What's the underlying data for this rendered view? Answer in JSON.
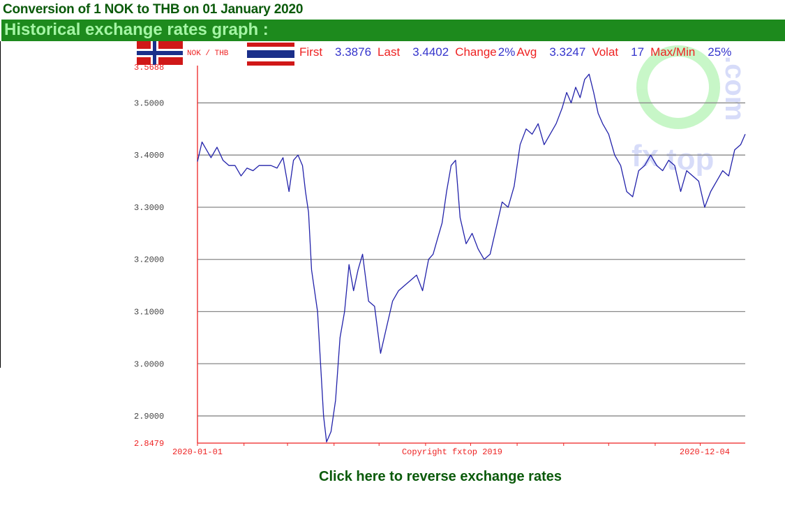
{
  "header": {
    "title": "Conversion of 1 NOK to THB on 01 January 2020",
    "section_title": "Historical exchange rates graph :"
  },
  "footer": {
    "reverse_link": "Click here to reverse exchange rates"
  },
  "colors": {
    "line": "#2222aa",
    "axis": "#ee2222",
    "grid": "#888888",
    "stats_label": "#ee2222",
    "stats_value": "#3333cc",
    "header_bar": "#1d8a1d",
    "header_text": "#a5f5a5",
    "title_text": "#0a5a0a"
  },
  "chart_data": {
    "type": "line",
    "pair_label": "NOK / THB",
    "flags": [
      "norway-flag",
      "thailand-flag"
    ],
    "stats": [
      {
        "label": "First",
        "value": "3.3876"
      },
      {
        "label": "Last",
        "value": "3.4402"
      },
      {
        "label": "Change",
        "value": "2%"
      },
      {
        "label": "Avg",
        "value": "3.3247"
      },
      {
        "label": "Volat",
        "value": "17"
      },
      {
        "label": "Max/Min",
        "value": "25%"
      }
    ],
    "ylim": [
      2.8479,
      3.5688
    ],
    "yticks": [
      "3.5688",
      "3.5000",
      "3.4000",
      "3.3000",
      "3.2000",
      "3.1000",
      "3.0000",
      "2.9000",
      "2.8479"
    ],
    "xlim": [
      "2020-01-01",
      "2020-12-31"
    ],
    "xticks_labeled": [
      "2020-01-01",
      "2020-12-04"
    ],
    "copyright": "Copyright fxtop 2019",
    "watermark": "fxtop.com",
    "grid": true,
    "series": [
      {
        "x": [
          "2020-01-01",
          "2020-01-04",
          "2020-01-07",
          "2020-01-10",
          "2020-01-14",
          "2020-01-18",
          "2020-01-22",
          "2020-01-26",
          "2020-01-30",
          "2020-02-03",
          "2020-02-07",
          "2020-02-11",
          "2020-02-15",
          "2020-02-19",
          "2020-02-23",
          "2020-02-27",
          "2020-03-02",
          "2020-03-05",
          "2020-03-08",
          "2020-03-11",
          "2020-03-13",
          "2020-03-15",
          "2020-03-17",
          "2020-03-19",
          "2020-03-21",
          "2020-03-23",
          "2020-03-25",
          "2020-03-27",
          "2020-03-30",
          "2020-04-02",
          "2020-04-05",
          "2020-04-08",
          "2020-04-11",
          "2020-04-14",
          "2020-04-17",
          "2020-04-20",
          "2020-04-24",
          "2020-04-28",
          "2020-05-02",
          "2020-05-06",
          "2020-05-10",
          "2020-05-14",
          "2020-05-18",
          "2020-05-22",
          "2020-05-26",
          "2020-05-30",
          "2020-06-03",
          "2020-06-06",
          "2020-06-09",
          "2020-06-12",
          "2020-06-15",
          "2020-06-18",
          "2020-06-21",
          "2020-06-24",
          "2020-06-28",
          "2020-07-02",
          "2020-07-06",
          "2020-07-10",
          "2020-07-14",
          "2020-07-18",
          "2020-07-22",
          "2020-07-26",
          "2020-07-30",
          "2020-08-03",
          "2020-08-07",
          "2020-08-11",
          "2020-08-15",
          "2020-08-19",
          "2020-08-23",
          "2020-08-27",
          "2020-08-31",
          "2020-09-03",
          "2020-09-06",
          "2020-09-09",
          "2020-09-12",
          "2020-09-15",
          "2020-09-18",
          "2020-09-21",
          "2020-09-24",
          "2020-09-27",
          "2020-10-01",
          "2020-10-05",
          "2020-10-09",
          "2020-10-13",
          "2020-10-17",
          "2020-10-21",
          "2020-10-25",
          "2020-10-29",
          "2020-11-02",
          "2020-11-06",
          "2020-11-10",
          "2020-11-14",
          "2020-11-18",
          "2020-11-22",
          "2020-11-26",
          "2020-11-30",
          "2020-12-04",
          "2020-12-08",
          "2020-12-12",
          "2020-12-16",
          "2020-12-20",
          "2020-12-24",
          "2020-12-28",
          "2020-12-31"
        ],
        "y": [
          3.3876,
          3.425,
          3.41,
          3.395,
          3.415,
          3.39,
          3.38,
          3.38,
          3.36,
          3.375,
          3.37,
          3.38,
          3.38,
          3.38,
          3.375,
          3.395,
          3.33,
          3.39,
          3.4,
          3.38,
          3.33,
          3.29,
          3.18,
          3.14,
          3.1,
          3.0,
          2.9,
          2.85,
          2.87,
          2.93,
          3.05,
          3.1,
          3.19,
          3.14,
          3.18,
          3.21,
          3.12,
          3.11,
          3.02,
          3.07,
          3.12,
          3.14,
          3.15,
          3.16,
          3.17,
          3.14,
          3.2,
          3.21,
          3.24,
          3.27,
          3.33,
          3.38,
          3.39,
          3.28,
          3.23,
          3.25,
          3.22,
          3.2,
          3.21,
          3.26,
          3.31,
          3.3,
          3.34,
          3.42,
          3.45,
          3.44,
          3.46,
          3.42,
          3.44,
          3.46,
          3.49,
          3.52,
          3.5,
          3.53,
          3.51,
          3.545,
          3.555,
          3.52,
          3.48,
          3.46,
          3.44,
          3.4,
          3.38,
          3.33,
          3.32,
          3.37,
          3.38,
          3.4,
          3.38,
          3.37,
          3.39,
          3.38,
          3.33,
          3.37,
          3.36,
          3.35,
          3.3,
          3.33,
          3.35,
          3.37,
          3.36,
          3.41,
          3.42,
          3.4402
        ]
      }
    ]
  }
}
